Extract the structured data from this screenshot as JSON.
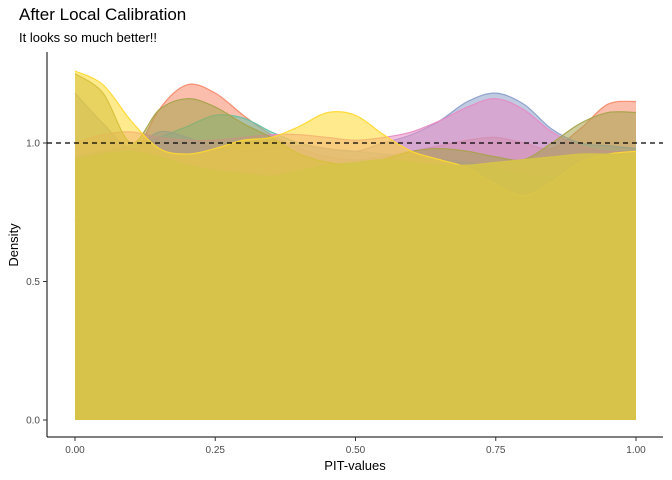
{
  "chart_data": {
    "type": "area",
    "title": "After Local Calibration",
    "subtitle": "It looks so much better!!",
    "xlabel": "PIT-values",
    "ylabel": "Density",
    "xlim": [
      0,
      1
    ],
    "ylim": [
      0,
      1.3
    ],
    "x_ticks": [
      {
        "value": 0.0,
        "label": "0.00"
      },
      {
        "value": 0.25,
        "label": "0.25"
      },
      {
        "value": 0.5,
        "label": "0.50"
      },
      {
        "value": 0.75,
        "label": "0.75"
      },
      {
        "value": 1.0,
        "label": "1.00"
      }
    ],
    "y_ticks": [
      {
        "value": 0.0,
        "label": "0.0"
      },
      {
        "value": 0.5,
        "label": "0.5"
      },
      {
        "value": 1.0,
        "label": "1.0"
      }
    ],
    "grid": false,
    "reference_line": {
      "y": 1.0,
      "style": "dashed",
      "color": "#000000"
    },
    "x": [
      0.0,
      0.05,
      0.1,
      0.15,
      0.2,
      0.25,
      0.3,
      0.35,
      0.4,
      0.45,
      0.5,
      0.55,
      0.6,
      0.65,
      0.7,
      0.75,
      0.8,
      0.85,
      0.9,
      0.95,
      1.0
    ],
    "series": [
      {
        "color": "#f8896a",
        "values": [
          0.72,
          0.82,
          0.93,
          1.12,
          1.21,
          1.18,
          1.1,
          1.03,
          0.98,
          0.95,
          0.94,
          0.95,
          0.97,
          0.99,
          1.01,
          1.02,
          1.0,
          0.98,
          1.05,
          1.14,
          1.15
        ]
      },
      {
        "color": "#66c2a5",
        "values": [
          0.95,
          0.97,
          0.99,
          1.02,
          1.06,
          1.1,
          1.09,
          1.04,
          1.0,
          0.98,
          0.97,
          0.96,
          0.95,
          0.94,
          0.93,
          0.91,
          0.89,
          0.88,
          0.91,
          0.95,
          0.97
        ]
      },
      {
        "color": "#8da0cb",
        "values": [
          1.18,
          1.07,
          0.98,
          1.04,
          1.02,
          0.98,
          0.97,
          0.98,
          0.99,
          0.98,
          0.97,
          1.0,
          1.03,
          1.08,
          1.15,
          1.18,
          1.14,
          1.05,
          1.0,
          0.99,
          0.98
        ]
      },
      {
        "color": "#e78ac3",
        "values": [
          1.0,
          1.03,
          1.04,
          1.02,
          1.01,
          1.01,
          1.02,
          1.03,
          1.03,
          1.02,
          1.01,
          1.02,
          1.04,
          1.08,
          1.13,
          1.16,
          1.12,
          1.04,
          0.99,
          0.97,
          0.97
        ]
      },
      {
        "color": "#a6a34a",
        "values": [
          1.25,
          1.18,
          1.0,
          1.12,
          1.16,
          1.13,
          1.07,
          1.02,
          0.96,
          0.93,
          0.92,
          0.94,
          0.97,
          0.98,
          0.97,
          0.95,
          0.94,
          1.0,
          1.07,
          1.11,
          1.11
        ]
      },
      {
        "color": "#ffd92f",
        "values": [
          1.26,
          1.21,
          1.08,
          0.98,
          0.96,
          0.98,
          1.01,
          1.02,
          1.06,
          1.11,
          1.1,
          1.03,
          0.97,
          0.94,
          0.91,
          0.85,
          0.81,
          0.86,
          0.93,
          0.96,
          0.97
        ]
      },
      {
        "color": "#d6c34a",
        "values": [
          0.94,
          0.96,
          0.97,
          0.95,
          0.92,
          0.9,
          0.89,
          0.88,
          0.9,
          0.92,
          0.93,
          0.94,
          0.93,
          0.92,
          0.92,
          0.93,
          0.94,
          0.95,
          0.96,
          0.96,
          0.96
        ]
      }
    ]
  }
}
